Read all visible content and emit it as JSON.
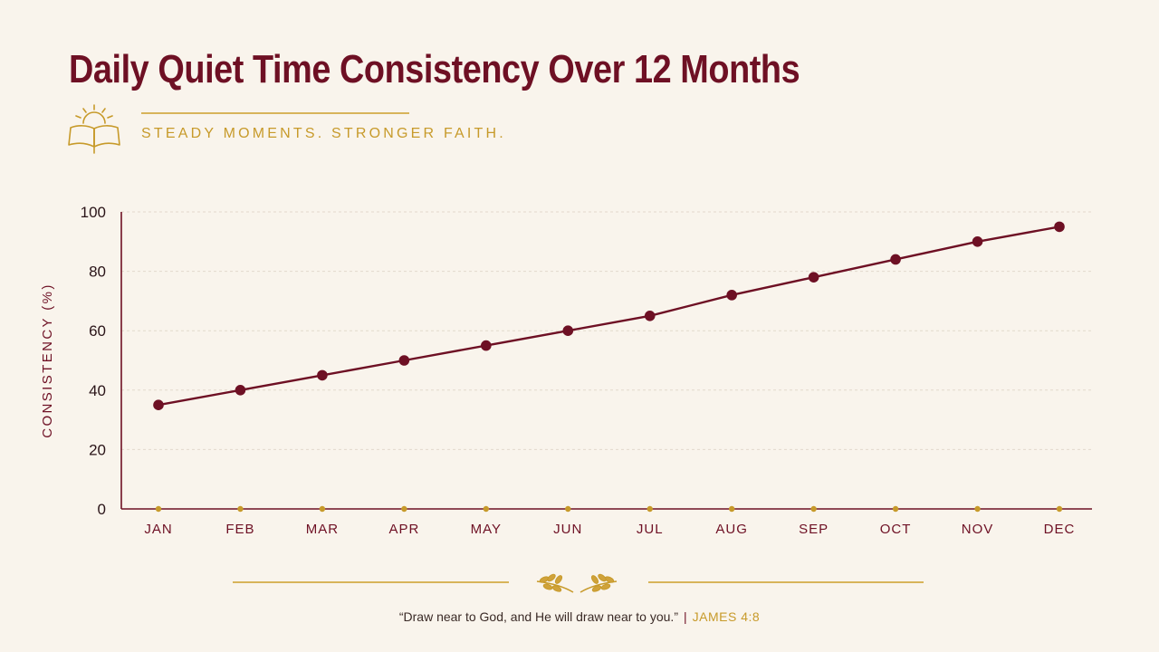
{
  "header": {
    "title": "Daily Quiet Time Consistency Over 12 Months",
    "subtitle": "STEADY MOMENTS. STRONGER FAITH.",
    "emblem_icon": "sunrise-open-book-icon"
  },
  "footer": {
    "ornament_icon": "laurel-branches-icon",
    "quote": "“Draw near to God, and He will draw near to you.”",
    "separator": "|",
    "reference": "JAMES 4:8"
  },
  "colors": {
    "background": "#f9f4ec",
    "line": "#6e1024",
    "accent_gold": "#c79a2a",
    "grid": "#e2d9cc"
  },
  "chart_data": {
    "type": "line",
    "categories": [
      "JAN",
      "FEB",
      "MAR",
      "APR",
      "MAY",
      "JUN",
      "JUL",
      "AUG",
      "SEP",
      "OCT",
      "NOV",
      "DEC"
    ],
    "series": [
      {
        "values": [
          35,
          40,
          45,
          50,
          55,
          60,
          65,
          72,
          78,
          84,
          90,
          95
        ]
      }
    ],
    "ylabel": "CONSISTENCY (%)",
    "xlabel": "",
    "ylim": [
      0,
      100
    ],
    "yticks": [
      0,
      20,
      40,
      60,
      80,
      100
    ],
    "grid": true,
    "legend": "none"
  }
}
